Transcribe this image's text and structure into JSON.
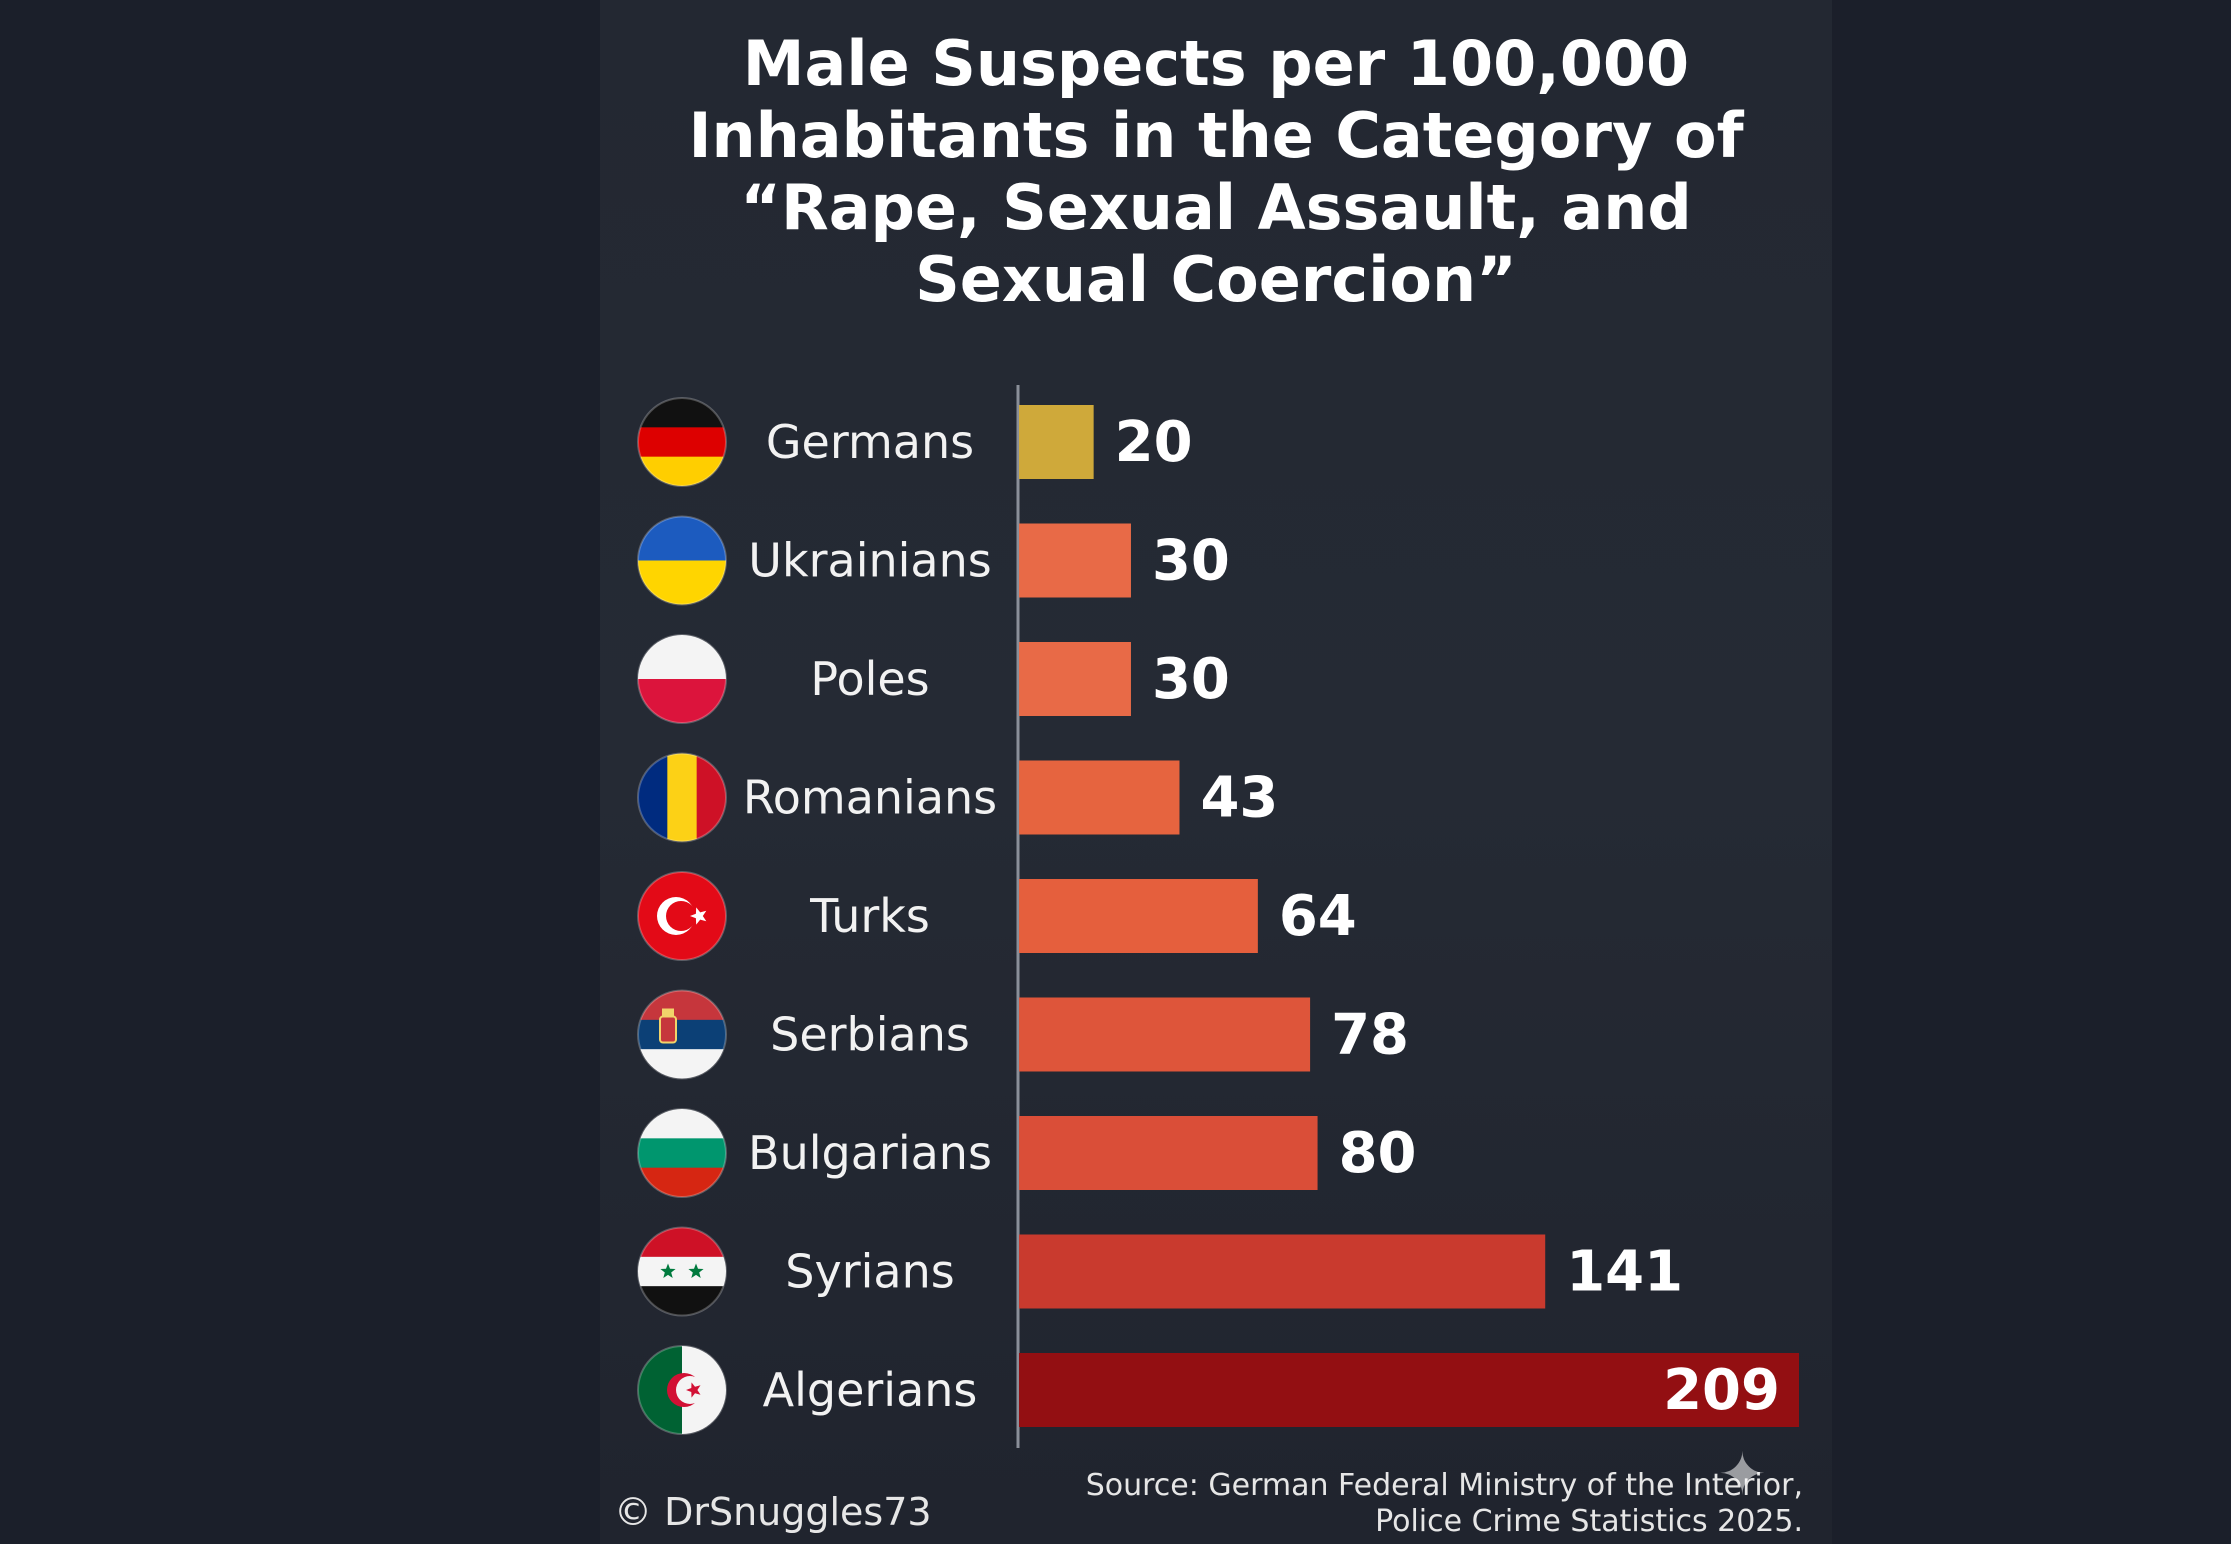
{
  "title_lines": [
    "Male Suspects per 100,000",
    "Inhabitants in the Category of",
    "“Rape, Sexual Assault, and",
    "Sexual Coercion”"
  ],
  "footer": {
    "credit": "© DrSnuggles73",
    "source_lines": [
      "Source: German Federal Ministry of the Interior,",
      "Police Crime Statistics 2025."
    ]
  },
  "chart_data": {
    "type": "bar",
    "orientation": "horizontal",
    "title": "Male Suspects per 100,000 Inhabitants in the Category of “Rape, Sexual Assault, and Sexual Coercion”",
    "categories": [
      "Germans",
      "Ukrainians",
      "Poles",
      "Romanians",
      "Turks",
      "Serbians",
      "Bulgarians",
      "Syrians",
      "Algerians"
    ],
    "values": [
      20,
      30,
      30,
      43,
      64,
      78,
      80,
      141,
      209
    ],
    "bar_colors": [
      "#cfa93a",
      "#e86a47",
      "#e86a47",
      "#e6643f",
      "#e55f3d",
      "#de553a",
      "#da4e38",
      "#c93a2e",
      "#930f12"
    ],
    "flags": [
      "germany-flag",
      "ukraine-flag",
      "poland-flag",
      "romania-flag",
      "turkey-flag",
      "serbia-flag",
      "bulgaria-flag",
      "syria-flag",
      "algeria-flag"
    ],
    "xlim": [
      0,
      209
    ],
    "value_labels": true,
    "grid": false,
    "legend": "none"
  }
}
